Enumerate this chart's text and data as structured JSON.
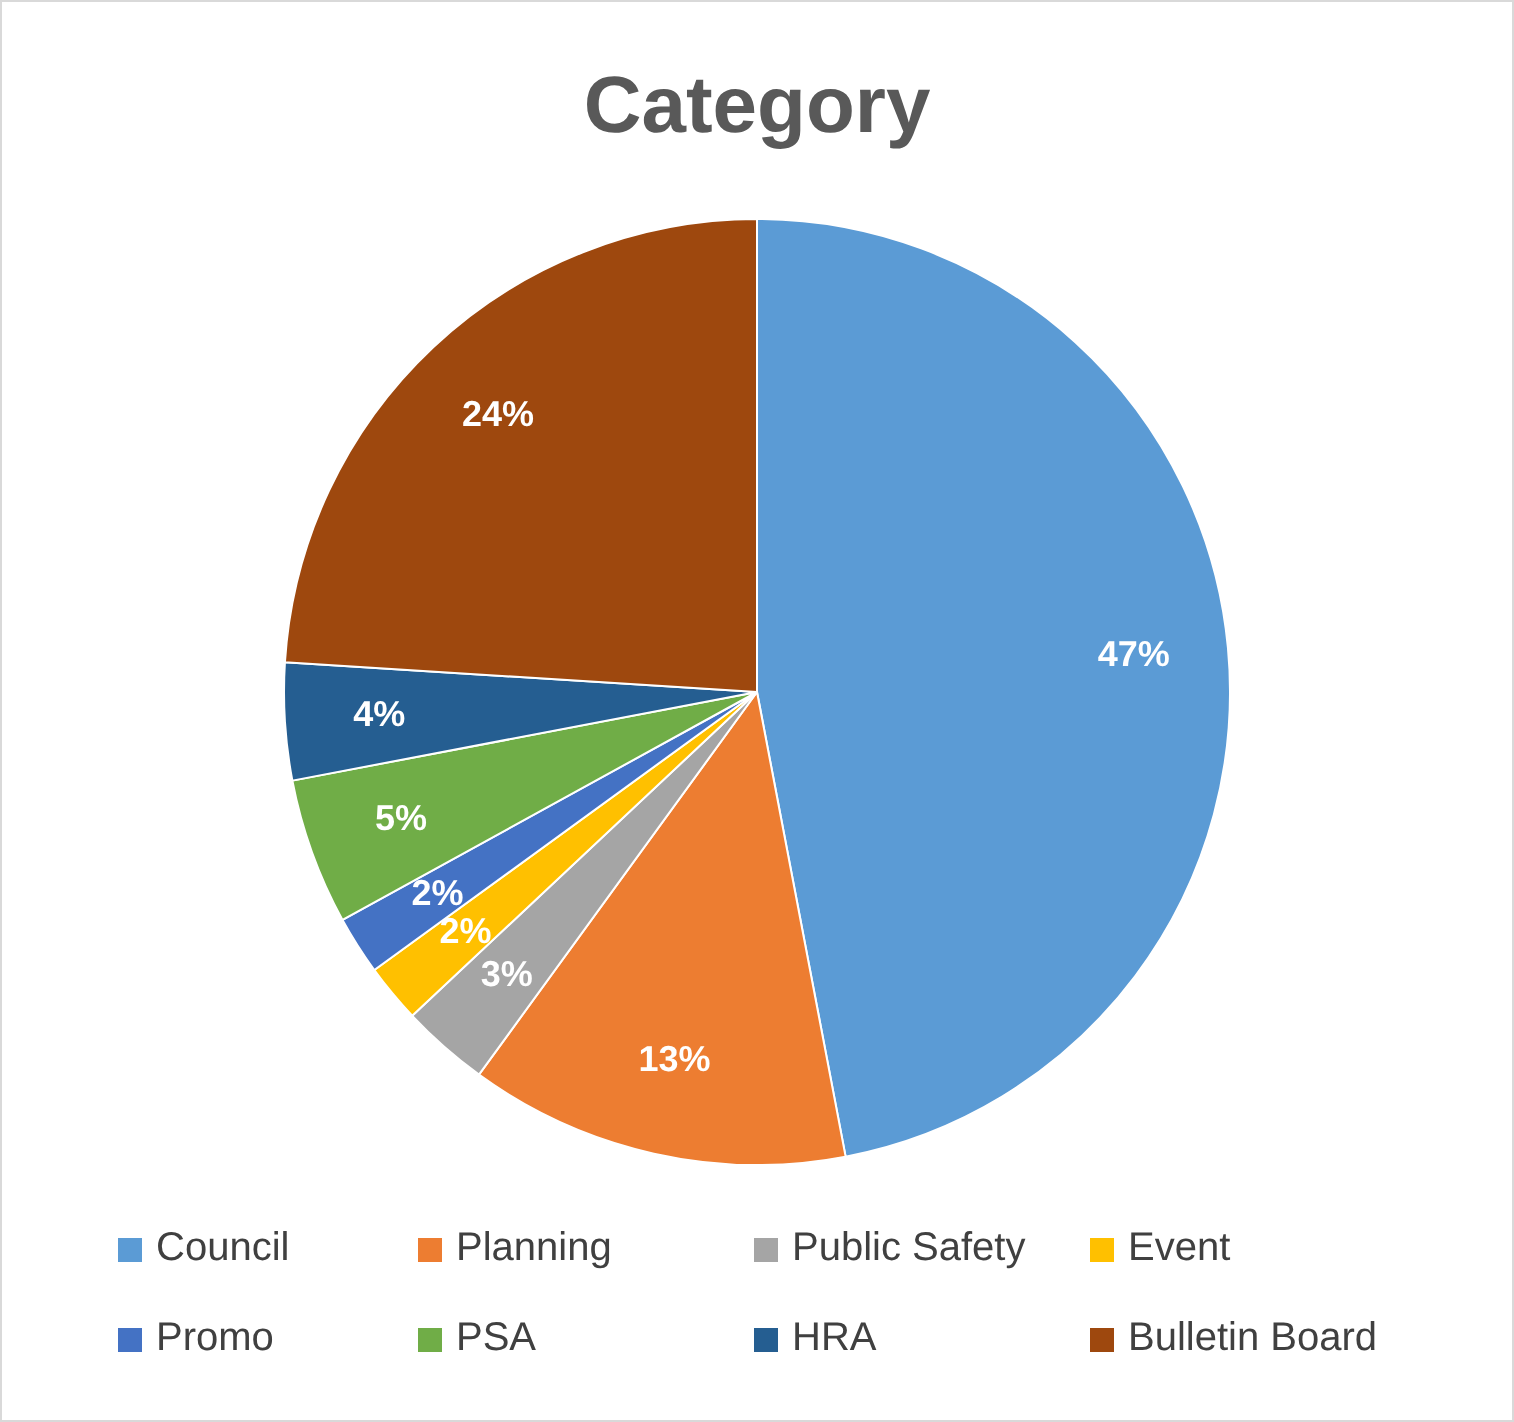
{
  "chart_data": {
    "type": "pie",
    "title": "Category",
    "categories": [
      "Council",
      "Planning",
      "Public Safety",
      "Event",
      "Promo",
      "PSA",
      "HRA",
      "Bulletin Board"
    ],
    "values": [
      47,
      13,
      3,
      2,
      2,
      5,
      4,
      24
    ],
    "value_labels": [
      "47%",
      "13%",
      "3%",
      "2%",
      "2%",
      "5%",
      "4%",
      "24%"
    ],
    "colors": [
      "#5b9bd5",
      "#ed7d31",
      "#a5a5a5",
      "#ffc000",
      "#4472c4",
      "#70ad47",
      "#255e91",
      "#9e480e"
    ],
    "legend": "bottom"
  }
}
